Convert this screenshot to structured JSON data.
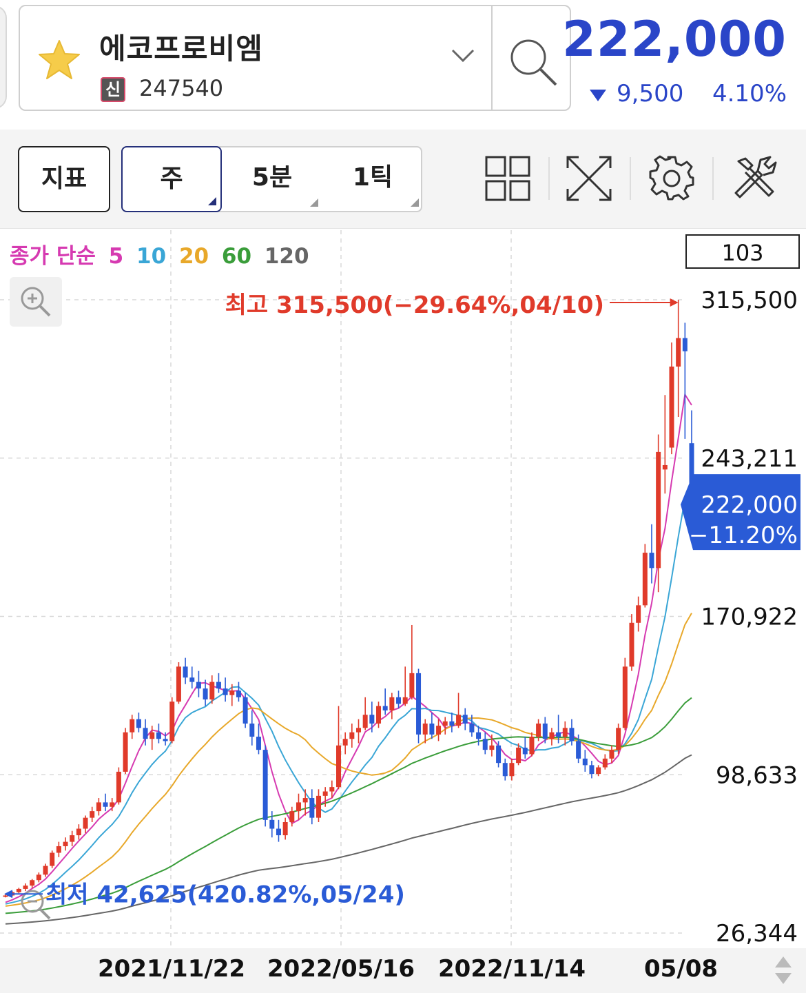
{
  "header": {
    "stock_name": "에코프로비엠",
    "credit_badge": "신",
    "stock_code": "247540",
    "price": "222,000",
    "change_amount": "9,500",
    "change_percent": "4.10%",
    "price_color": "#2a45c8"
  },
  "toolbar": {
    "indicator_label": "지표",
    "periods": [
      {
        "label": "주",
        "active": true
      },
      {
        "label": "5분",
        "active": false
      },
      {
        "label": "1틱",
        "active": false
      }
    ],
    "icons": [
      "layout-grid-icon",
      "fullscreen-icon",
      "settings-gear-icon",
      "tools-icon"
    ]
  },
  "chart_data": {
    "type": "candlestick",
    "interval": "weekly",
    "legend": {
      "prefix": "종가 단순",
      "ma": [
        {
          "period": "5",
          "color": "#d63ab1"
        },
        {
          "period": "10",
          "color": "#3aa6d6"
        },
        {
          "period": "20",
          "color": "#e8a82a"
        },
        {
          "period": "60",
          "color": "#3a9d3a"
        },
        {
          "period": "120",
          "color": "#666666"
        }
      ]
    },
    "candle_count_badge": "103",
    "y_axis_labels": [
      "315,500",
      "243,211",
      "170,922",
      "98,633",
      "26,344"
    ],
    "y_axis_values": [
      315500,
      243211,
      170922,
      98633,
      26344
    ],
    "x_axis_labels": [
      "2021/11/22",
      "2022/05/16",
      "2022/11/14",
      "05/08"
    ],
    "high_annotation": "최고 315,500(−29.64%,04/10)",
    "low_annotation": "최저 42,625(420.82%,05/24)",
    "current_price_label": "222,000",
    "current_change_label": "−11.20%",
    "up_color": "#e03a2a",
    "down_color": "#2a5bd6",
    "candles": [
      [
        43000,
        44000,
        42625,
        43500
      ],
      [
        43500,
        45500,
        43000,
        45000
      ],
      [
        45000,
        47000,
        44500,
        46500
      ],
      [
        46500,
        49000,
        45500,
        48000
      ],
      [
        48000,
        51000,
        47000,
        50500
      ],
      [
        50500,
        54000,
        49500,
        53000
      ],
      [
        53000,
        58000,
        52000,
        57000
      ],
      [
        57000,
        64000,
        56000,
        63000
      ],
      [
        63000,
        68000,
        61000,
        66000
      ],
      [
        66000,
        70000,
        64000,
        68000
      ],
      [
        68000,
        73000,
        66000,
        71000
      ],
      [
        71000,
        76000,
        69000,
        74000
      ],
      [
        74000,
        80000,
        72000,
        79000
      ],
      [
        79000,
        84000,
        77000,
        82000
      ],
      [
        82000,
        88000,
        80000,
        86000
      ],
      [
        86000,
        90000,
        82000,
        84000
      ],
      [
        84000,
        88000,
        82000,
        86000
      ],
      [
        86000,
        102000,
        85000,
        100000
      ],
      [
        100000,
        120000,
        99000,
        118000
      ],
      [
        118000,
        126000,
        115000,
        124000
      ],
      [
        124000,
        127000,
        118000,
        120000
      ],
      [
        120000,
        124000,
        112000,
        115000
      ],
      [
        115000,
        121000,
        110000,
        118000
      ],
      [
        118000,
        122000,
        113000,
        115000
      ],
      [
        115000,
        118000,
        112000,
        114000
      ],
      [
        114000,
        134000,
        113000,
        132000
      ],
      [
        132000,
        150000,
        131000,
        148000
      ],
      [
        148000,
        152000,
        140000,
        143000
      ],
      [
        143000,
        148000,
        138000,
        141000
      ],
      [
        141000,
        146000,
        134000,
        138000
      ],
      [
        138000,
        142000,
        130000,
        133000
      ],
      [
        133000,
        144000,
        131000,
        141000
      ],
      [
        141000,
        145000,
        136000,
        138000
      ],
      [
        138000,
        143000,
        132000,
        135000
      ],
      [
        135000,
        140000,
        130000,
        137000
      ],
      [
        137000,
        141000,
        132000,
        134000
      ],
      [
        134000,
        136000,
        120000,
        122000
      ],
      [
        122000,
        128000,
        112000,
        116000
      ],
      [
        116000,
        122000,
        108000,
        110000
      ],
      [
        110000,
        112000,
        75000,
        78000
      ],
      [
        78000,
        82000,
        70000,
        74000
      ],
      [
        74000,
        78000,
        68000,
        71000
      ],
      [
        71000,
        79000,
        69000,
        77000
      ],
      [
        77000,
        84000,
        75000,
        82000
      ],
      [
        82000,
        90000,
        78000,
        86000
      ],
      [
        86000,
        92000,
        80000,
        88000
      ],
      [
        88000,
        92000,
        76000,
        79000
      ],
      [
        79000,
        92000,
        77000,
        89000
      ],
      [
        89000,
        93000,
        84000,
        91000
      ],
      [
        91000,
        96000,
        88000,
        93000
      ],
      [
        93000,
        130000,
        92000,
        112000
      ],
      [
        112000,
        118000,
        108000,
        115000
      ],
      [
        115000,
        122000,
        111000,
        118000
      ],
      [
        118000,
        124000,
        113000,
        120000
      ],
      [
        120000,
        134000,
        119000,
        126000
      ],
      [
        126000,
        132000,
        118000,
        122000
      ],
      [
        122000,
        132000,
        120000,
        130000
      ],
      [
        130000,
        138000,
        126000,
        128000
      ],
      [
        128000,
        136000,
        124000,
        134000
      ],
      [
        134000,
        137000,
        129000,
        131000
      ],
      [
        131000,
        148000,
        130000,
        134000
      ],
      [
        134000,
        167000,
        133000,
        145000
      ],
      [
        145000,
        147000,
        113000,
        117000
      ],
      [
        117000,
        124000,
        113000,
        122000
      ],
      [
        122000,
        127000,
        115000,
        117000
      ],
      [
        117000,
        124000,
        114000,
        121000
      ],
      [
        121000,
        125000,
        117000,
        123000
      ],
      [
        123000,
        127000,
        118000,
        121000
      ],
      [
        121000,
        136000,
        120000,
        126000
      ],
      [
        126000,
        129000,
        119000,
        122000
      ],
      [
        122000,
        126000,
        116000,
        118000
      ],
      [
        118000,
        121000,
        112000,
        115000
      ],
      [
        115000,
        118000,
        108000,
        110000
      ],
      [
        110000,
        117000,
        107000,
        112000
      ],
      [
        112000,
        114000,
        102000,
        104000
      ],
      [
        104000,
        106000,
        96000,
        98000
      ],
      [
        98000,
        106000,
        96000,
        104000
      ],
      [
        104000,
        113000,
        103000,
        111000
      ],
      [
        111000,
        116000,
        106000,
        108000
      ],
      [
        108000,
        118000,
        107000,
        116000
      ],
      [
        116000,
        124000,
        114000,
        122000
      ],
      [
        122000,
        125000,
        113000,
        115000
      ],
      [
        115000,
        120000,
        112000,
        118000
      ],
      [
        118000,
        126000,
        113000,
        116000
      ],
      [
        116000,
        123000,
        112000,
        120000
      ],
      [
        120000,
        124000,
        112000,
        114000
      ],
      [
        114000,
        117000,
        104000,
        106000
      ],
      [
        106000,
        110000,
        100000,
        103000
      ],
      [
        103000,
        105000,
        97000,
        99000
      ],
      [
        99000,
        103000,
        98000,
        102000
      ],
      [
        102000,
        108000,
        101000,
        106000
      ],
      [
        106000,
        112000,
        104000,
        110000
      ],
      [
        110000,
        122000,
        108000,
        120000
      ],
      [
        120000,
        152000,
        119000,
        148000
      ],
      [
        148000,
        172000,
        146000,
        168000
      ],
      [
        168000,
        180000,
        164000,
        176000
      ],
      [
        176000,
        204000,
        175000,
        200000
      ],
      [
        200000,
        213000,
        186000,
        193000
      ],
      [
        193000,
        254000,
        182000,
        246000
      ],
      [
        238000,
        272000,
        227000,
        240000
      ],
      [
        248000,
        296000,
        245000,
        285000
      ],
      [
        285000,
        315500,
        262000,
        298000
      ],
      [
        298000,
        305000,
        252000,
        292000
      ]
    ],
    "last_candle": [
      250000,
      265000,
      218000,
      222000
    ]
  }
}
